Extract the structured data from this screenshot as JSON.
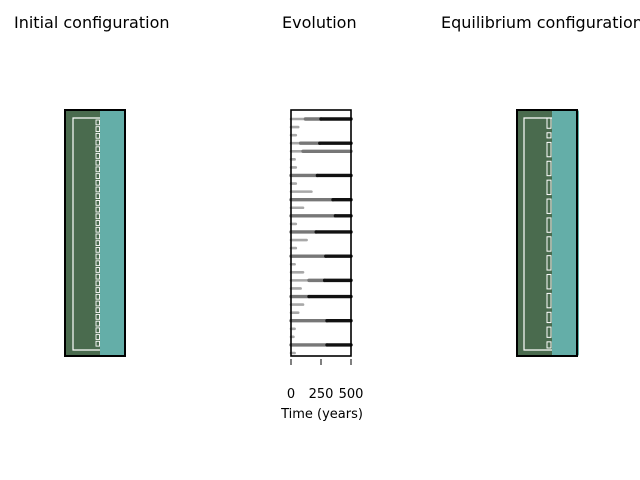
{
  "colors": {
    "dark_green": "#4a6b4e",
    "teal": "#64aea8",
    "outline": "#000000",
    "line": "#ffffff",
    "evolution_dark": "#111111",
    "evolution_mid": "#777777",
    "evolution_light": "#a8a8a8"
  },
  "titles": {
    "initial": "Initial configuration",
    "evolution": "Evolution",
    "equilibrium": "Equilibrium configuration"
  },
  "chart_data": [
    {
      "type": "diagram",
      "title": "Initial configuration",
      "divider_segments": 34
    },
    {
      "type": "bar",
      "title": "Evolution",
      "xlabel": "Time (years)",
      "xlim": [
        0,
        500
      ],
      "xticks": [
        0,
        250,
        500
      ],
      "tick_labels": [
        "0",
        "250",
        "500"
      ],
      "rows": [
        {
          "lines": [
            {
              "start": 0,
              "end": 120,
              "tone": "light"
            },
            {
              "start": 120,
              "end": 250,
              "tone": "mid"
            },
            {
              "start": 250,
              "end": 500,
              "tone": "dark"
            }
          ]
        },
        {
          "lines": [
            {
              "start": 0,
              "end": 60,
              "tone": "light"
            }
          ]
        },
        {
          "lines": [
            {
              "start": 0,
              "end": 40,
              "tone": "light"
            }
          ]
        },
        {
          "lines": [
            {
              "start": 0,
              "end": 80,
              "tone": "light"
            },
            {
              "start": 80,
              "end": 240,
              "tone": "mid"
            },
            {
              "start": 240,
              "end": 500,
              "tone": "dark"
            }
          ]
        },
        {
          "lines": [
            {
              "start": 0,
              "end": 100,
              "tone": "light"
            },
            {
              "start": 100,
              "end": 500,
              "tone": "mid"
            }
          ]
        },
        {
          "lines": [
            {
              "start": 0,
              "end": 30,
              "tone": "light"
            }
          ]
        },
        {
          "lines": [
            {
              "start": 0,
              "end": 40,
              "tone": "light"
            }
          ]
        },
        {
          "lines": [
            {
              "start": 0,
              "end": 220,
              "tone": "mid"
            },
            {
              "start": 220,
              "end": 500,
              "tone": "dark"
            }
          ]
        },
        {
          "lines": [
            {
              "start": 0,
              "end": 40,
              "tone": "light"
            }
          ]
        },
        {
          "lines": [
            {
              "start": 0,
              "end": 170,
              "tone": "light"
            }
          ]
        },
        {
          "lines": [
            {
              "start": 0,
              "end": 350,
              "tone": "mid"
            },
            {
              "start": 350,
              "end": 500,
              "tone": "dark"
            }
          ]
        },
        {
          "lines": [
            {
              "start": 0,
              "end": 100,
              "tone": "light"
            }
          ]
        },
        {
          "lines": [
            {
              "start": 0,
              "end": 370,
              "tone": "mid"
            },
            {
              "start": 370,
              "end": 500,
              "tone": "dark"
            }
          ]
        },
        {
          "lines": [
            {
              "start": 0,
              "end": 40,
              "tone": "light"
            }
          ]
        },
        {
          "lines": [
            {
              "start": 0,
              "end": 210,
              "tone": "mid"
            },
            {
              "start": 210,
              "end": 500,
              "tone": "dark"
            }
          ]
        },
        {
          "lines": [
            {
              "start": 0,
              "end": 130,
              "tone": "light"
            }
          ]
        },
        {
          "lines": [
            {
              "start": 0,
              "end": 40,
              "tone": "light"
            }
          ]
        },
        {
          "lines": [
            {
              "start": 0,
              "end": 290,
              "tone": "mid"
            },
            {
              "start": 290,
              "end": 500,
              "tone": "dark"
            }
          ]
        },
        {
          "lines": [
            {
              "start": 0,
              "end": 30,
              "tone": "light"
            }
          ]
        },
        {
          "lines": [
            {
              "start": 0,
              "end": 100,
              "tone": "light"
            }
          ]
        },
        {
          "lines": [
            {
              "start": 0,
              "end": 150,
              "tone": "light"
            },
            {
              "start": 150,
              "end": 280,
              "tone": "mid"
            },
            {
              "start": 280,
              "end": 500,
              "tone": "dark"
            }
          ]
        },
        {
          "lines": [
            {
              "start": 0,
              "end": 80,
              "tone": "light"
            }
          ]
        },
        {
          "lines": [
            {
              "start": 0,
              "end": 150,
              "tone": "mid"
            },
            {
              "start": 150,
              "end": 500,
              "tone": "dark"
            }
          ]
        },
        {
          "lines": [
            {
              "start": 0,
              "end": 100,
              "tone": "light"
            }
          ]
        },
        {
          "lines": [
            {
              "start": 0,
              "end": 60,
              "tone": "light"
            }
          ]
        },
        {
          "lines": [
            {
              "start": 0,
              "end": 300,
              "tone": "mid"
            },
            {
              "start": 300,
              "end": 500,
              "tone": "dark"
            }
          ]
        },
        {
          "lines": [
            {
              "start": 0,
              "end": 30,
              "tone": "light"
            }
          ]
        },
        {
          "lines": [
            {
              "start": 0,
              "end": 20,
              "tone": "light"
            }
          ]
        },
        {
          "lines": [
            {
              "start": 0,
              "end": 300,
              "tone": "mid"
            },
            {
              "start": 300,
              "end": 500,
              "tone": "dark"
            }
          ]
        },
        {
          "lines": [
            {
              "start": 0,
              "end": 30,
              "tone": "light"
            }
          ]
        }
      ]
    },
    {
      "type": "diagram",
      "title": "Equilibrium configuration",
      "segment_lengths": [
        1.0,
        0.5,
        1.4,
        1.4,
        1.4,
        1.4,
        1.4,
        1.4,
        1.4,
        1.4,
        1.4,
        1.0,
        1.0,
        0.6
      ]
    }
  ]
}
